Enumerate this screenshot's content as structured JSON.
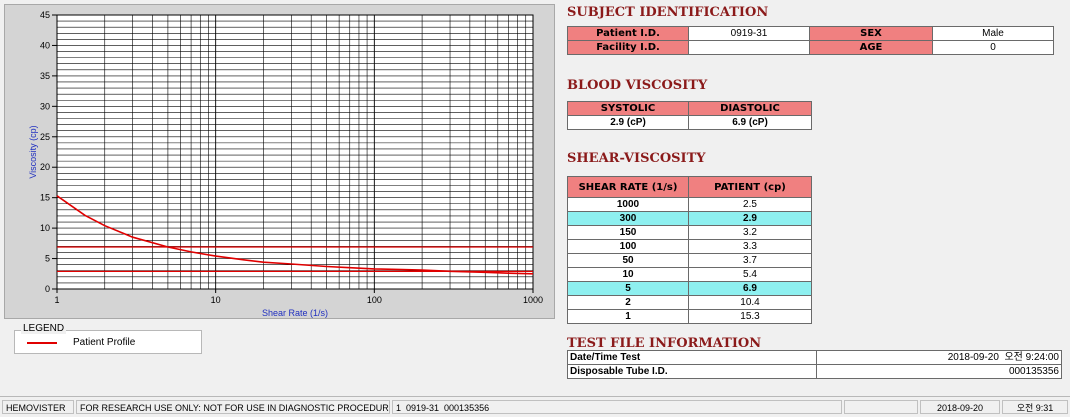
{
  "chart_data": {
    "type": "line",
    "xlabel": "Shear Rate (1/s)",
    "ylabel": "Viscosity (cp)",
    "x_scale": "log",
    "xlim": [
      1,
      1000
    ],
    "ylim": [
      0,
      45
    ],
    "y_ticks": [
      0,
      5,
      10,
      15,
      20,
      25,
      30,
      35,
      40,
      45
    ],
    "x_tick_labels": [
      "1",
      "10",
      "100",
      "1000"
    ],
    "grid": true,
    "series": [
      {
        "name": "Patient Profile",
        "color": "#e00000",
        "x": [
          1,
          1.5,
          2,
          3,
          5,
          7,
          10,
          15,
          20,
          30,
          50,
          70,
          100,
          150,
          200,
          300,
          500,
          700,
          1000
        ],
        "y": [
          15.3,
          12.1,
          10.4,
          8.5,
          6.9,
          6.1,
          5.4,
          4.8,
          4.4,
          4.1,
          3.7,
          3.5,
          3.3,
          3.2,
          3.1,
          2.9,
          2.75,
          2.6,
          2.5
        ]
      }
    ],
    "reference_lines": [
      {
        "label": "SYSTOLIC",
        "y": 2.9,
        "color": "#e00000"
      },
      {
        "label": "DIASTOLIC",
        "y": 6.9,
        "color": "#e00000"
      }
    ]
  },
  "legend": {
    "title": "LEGEND",
    "label": "Patient Profile"
  },
  "subject": {
    "title": "SUBJECT IDENTIFICATION",
    "patient_id_label": "Patient I.D.",
    "patient_id": "0919-31",
    "sex_label": "SEX",
    "sex": "Male",
    "facility_label": "Facility I.D.",
    "facility": "",
    "age_label": "AGE",
    "age": "0"
  },
  "blood": {
    "title": "BLOOD VISCOSITY",
    "systolic_label": "SYSTOLIC",
    "diastolic_label": "DIASTOLIC",
    "systolic": "2.9 (cP)",
    "diastolic": "6.9 (cP)"
  },
  "shear": {
    "title": "SHEAR-VISCOSITY",
    "col1": "SHEAR RATE (1/s)",
    "col2": "PATIENT (cp)",
    "rows": [
      {
        "rate": "1000",
        "value": "2.5"
      },
      {
        "rate": "300",
        "value": "2.9"
      },
      {
        "rate": "150",
        "value": "3.2"
      },
      {
        "rate": "100",
        "value": "3.3"
      },
      {
        "rate": "50",
        "value": "3.7"
      },
      {
        "rate": "10",
        "value": "5.4"
      },
      {
        "rate": "5",
        "value": "6.9"
      },
      {
        "rate": "2",
        "value": "10.4"
      },
      {
        "rate": "1",
        "value": "15.3"
      }
    ]
  },
  "testfile": {
    "title": "TEST FILE INFORMATION",
    "datetime_label": "Date/Time Test",
    "datetime": "2018-09-20  오전 9:24:00",
    "tube_label": "Disposable Tube I.D.",
    "tube": "000135356"
  },
  "status": {
    "app": "HEMOVISTER",
    "notice": "FOR RESEARCH USE ONLY: NOT FOR USE IN DIAGNOSTIC PROCEDURES",
    "record": "1  0919-31  000135356",
    "date": "2018-09-20",
    "time": "오전 9:31"
  }
}
